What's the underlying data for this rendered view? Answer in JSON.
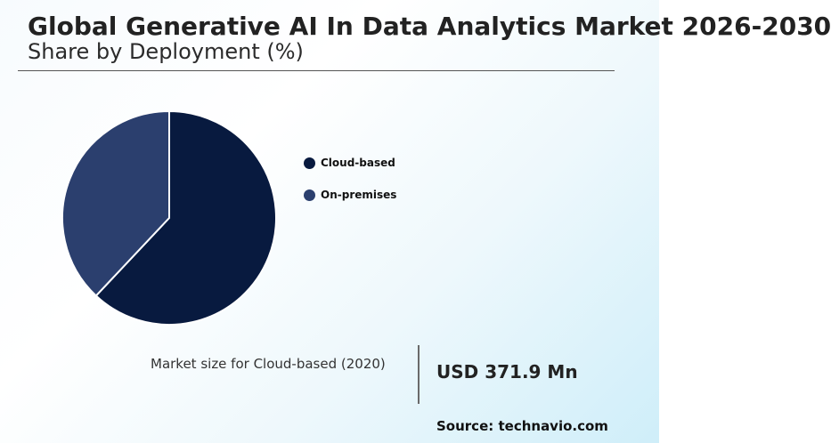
{
  "header": {
    "title": "Global Generative AI In Data Analytics Market 2026-2030",
    "subtitle": "Share by Deployment (%)"
  },
  "chart_data": {
    "type": "pie",
    "categories": [
      "Cloud-based",
      "On-premises"
    ],
    "values": [
      62,
      38
    ],
    "unit": "%",
    "colors": [
      "#081a3f",
      "#2b3f6e"
    ],
    "legend_placement": "right",
    "start_angle": "12 o'clock",
    "direction": "clockwise"
  },
  "kpi": {
    "label": "Market size for Cloud-based (2020)",
    "value": "USD 371.9 Mn"
  },
  "source": "Source: technavio.com",
  "colors": {
    "title": "#222222",
    "slice_border": "#ffffff",
    "background_gradient_end": "#cfeef9"
  }
}
